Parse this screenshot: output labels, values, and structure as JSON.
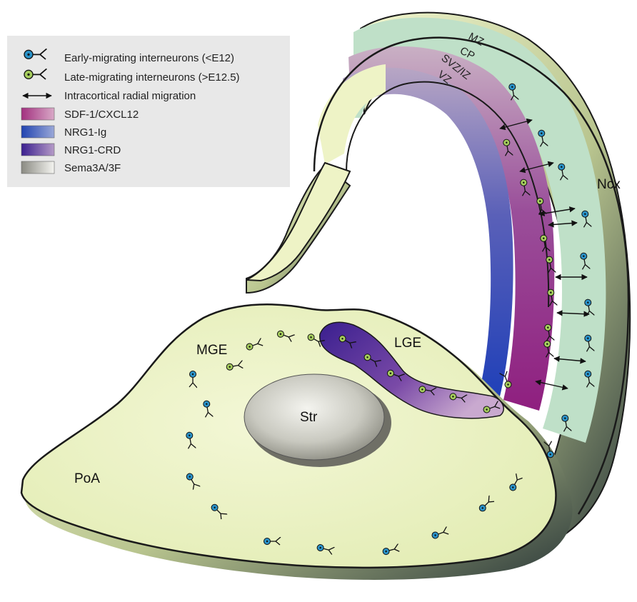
{
  "legend": {
    "early_migrating": "Early-migrating interneurons (<E12)",
    "late_migrating": "Late-migrating interneurons (>E12.5)",
    "radial_migration": "Intracortical radial migration",
    "sdf1": "SDF-1/CXCL12",
    "nrg1_ig": "NRG1-Ig",
    "nrg1_crd": "NRG1-CRD",
    "sema3": "Sema3A/3F"
  },
  "regions": {
    "mge": "MGE",
    "lge": "LGE",
    "str": "Str",
    "poa": "PoA",
    "ncx": "Ncx"
  },
  "layers": {
    "mz": "MZ",
    "cp": "CP",
    "svz_iz": "SVZ/IZ",
    "vz": "VZ"
  },
  "colors": {
    "tissue": "#eef3c6",
    "tissue_edge": "#1a1a1a",
    "early_neuron": "#2a93c9",
    "late_neuron": "#9cc65a",
    "sdf1": "#b33a8f",
    "nrg1_ig": "#2f4fb0",
    "nrg1_crd": "#4b2a90",
    "sema3": "#8f8f86",
    "cp_layer": "#b7dcc3",
    "legend_bg": "#e8e8e8"
  }
}
